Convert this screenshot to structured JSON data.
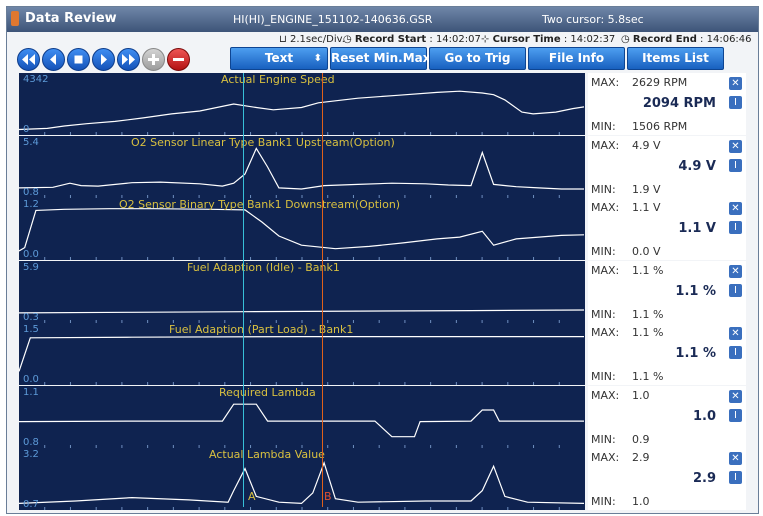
{
  "window": {
    "title": "Data Review",
    "file": "HI(HI)_ENGINE_151102-140636.GSR",
    "cursor_info": "Two cursor: 5.8sec"
  },
  "info": {
    "div": "2.1sec/Div.",
    "record_start_label": "Record Start",
    "record_start": "14:02:07",
    "cursor_time_label": "Cursor Time",
    "cursor_time": "14:02:37",
    "record_end_label": "Record End",
    "record_end": "14:06:46"
  },
  "toolbar": {
    "text_label": "Text",
    "reset_label": "Reset Min.Max",
    "trig_label": "Go to Trig",
    "file_info_label": "File Info",
    "items_label": "Items List"
  },
  "labels": {
    "max": "MAX:",
    "min": "MIN:"
  },
  "cursors": {
    "a": "A",
    "b": "B",
    "a_color": "#37c0d8",
    "b_color": "#e0601a"
  },
  "colors": {
    "panel_bg": "#0f2350",
    "trace": "#ffffff",
    "title_text": "#d8c040",
    "axis_text": "#5d9ad8",
    "button": "#1860bf"
  },
  "channels": [
    {
      "title": "Actual Engine Speed",
      "ymax": "4342",
      "ymin": "0",
      "max": "2629 RPM",
      "current": "2094 RPM",
      "min": "1506 RPM",
      "trace": [
        [
          0,
          0.06
        ],
        [
          0.05,
          0.08
        ],
        [
          0.08,
          0.12
        ],
        [
          0.12,
          0.16
        ],
        [
          0.17,
          0.2
        ],
        [
          0.22,
          0.26
        ],
        [
          0.27,
          0.33
        ],
        [
          0.32,
          0.38
        ],
        [
          0.38,
          0.5
        ],
        [
          0.42,
          0.44
        ],
        [
          0.45,
          0.4
        ],
        [
          0.5,
          0.44
        ],
        [
          0.53,
          0.52
        ],
        [
          0.6,
          0.6
        ],
        [
          0.67,
          0.65
        ],
        [
          0.74,
          0.7
        ],
        [
          0.78,
          0.72
        ],
        [
          0.82,
          0.69
        ],
        [
          0.84,
          0.66
        ],
        [
          0.86,
          0.57
        ],
        [
          0.89,
          0.36
        ],
        [
          0.91,
          0.33
        ],
        [
          0.95,
          0.36
        ],
        [
          0.98,
          0.42
        ],
        [
          1,
          0.45
        ]
      ]
    },
    {
      "title": "O2 Sensor Linear Type Bank1 Upstream(Option)",
      "ymax": "5.4",
      "ymin": "0.8",
      "max": "4.9 V",
      "current": "4.9 V",
      "min": "1.9 V",
      "trace": [
        [
          0,
          0.14
        ],
        [
          0.06,
          0.15
        ],
        [
          0.09,
          0.22
        ],
        [
          0.11,
          0.18
        ],
        [
          0.14,
          0.17
        ],
        [
          0.2,
          0.23
        ],
        [
          0.25,
          0.24
        ],
        [
          0.32,
          0.21
        ],
        [
          0.36,
          0.17
        ],
        [
          0.38,
          0.22
        ],
        [
          0.4,
          0.38
        ],
        [
          0.42,
          0.82
        ],
        [
          0.44,
          0.5
        ],
        [
          0.46,
          0.14
        ],
        [
          0.5,
          0.12
        ],
        [
          0.54,
          0.18
        ],
        [
          0.6,
          0.2
        ],
        [
          0.66,
          0.22
        ],
        [
          0.72,
          0.21
        ],
        [
          0.76,
          0.19
        ],
        [
          0.8,
          0.18
        ],
        [
          0.82,
          0.75
        ],
        [
          0.84,
          0.2
        ],
        [
          0.88,
          0.16
        ],
        [
          0.92,
          0.14
        ],
        [
          0.96,
          0.12
        ],
        [
          1,
          0.12
        ]
      ]
    },
    {
      "title": "O2 Sensor Binary Type Bank1 Downstream(Option)",
      "ymax": "1.2",
      "ymin": "0.0",
      "max": "1.1 V",
      "current": "1.1 V",
      "min": "0.0 V",
      "trace": [
        [
          0,
          0.12
        ],
        [
          0.01,
          0.18
        ],
        [
          0.03,
          0.82
        ],
        [
          0.08,
          0.84
        ],
        [
          0.16,
          0.85
        ],
        [
          0.24,
          0.85
        ],
        [
          0.34,
          0.84
        ],
        [
          0.4,
          0.83
        ],
        [
          0.43,
          0.62
        ],
        [
          0.46,
          0.38
        ],
        [
          0.5,
          0.22
        ],
        [
          0.56,
          0.16
        ],
        [
          0.62,
          0.2
        ],
        [
          0.68,
          0.26
        ],
        [
          0.74,
          0.33
        ],
        [
          0.78,
          0.36
        ],
        [
          0.82,
          0.46
        ],
        [
          0.84,
          0.22
        ],
        [
          0.88,
          0.33
        ],
        [
          0.92,
          0.36
        ],
        [
          0.96,
          0.39
        ],
        [
          1,
          0.4
        ]
      ]
    },
    {
      "title": "Fuel Adaption (Idle) - Bank1",
      "ymax": "5.9",
      "ymin": "0.3",
      "max": "1.1 %",
      "current": "1.1 %",
      "min": "1.1 %",
      "trace": [
        [
          0,
          0.14
        ],
        [
          0.2,
          0.15
        ],
        [
          0.4,
          0.16
        ],
        [
          0.6,
          0.17
        ],
        [
          0.8,
          0.18
        ],
        [
          1,
          0.19
        ]
      ]
    },
    {
      "title": "Fuel Adaption (Part Load) - Bank1",
      "ymax": "1.5",
      "ymin": "0.0",
      "max": "1.1 %",
      "current": "1.1 %",
      "min": "1.1 %",
      "trace": [
        [
          0,
          0.2
        ],
        [
          0.02,
          0.78
        ],
        [
          0.2,
          0.79
        ],
        [
          0.5,
          0.8
        ],
        [
          0.8,
          0.8
        ],
        [
          1,
          0.8
        ]
      ]
    },
    {
      "title": "Required Lambda",
      "ymax": "1.1",
      "ymin": "0.8",
      "max": "1.0",
      "current": "1.0",
      "min": "0.9",
      "trace": [
        [
          0,
          0.42
        ],
        [
          0.2,
          0.43
        ],
        [
          0.36,
          0.43
        ],
        [
          0.38,
          0.72
        ],
        [
          0.42,
          0.72
        ],
        [
          0.44,
          0.43
        ],
        [
          0.63,
          0.43
        ],
        [
          0.66,
          0.16
        ],
        [
          0.7,
          0.16
        ],
        [
          0.71,
          0.42
        ],
        [
          0.8,
          0.43
        ],
        [
          0.82,
          0.62
        ],
        [
          0.84,
          0.62
        ],
        [
          0.85,
          0.43
        ],
        [
          1,
          0.43
        ]
      ]
    },
    {
      "title": "Actual Lambda Value",
      "ymax": "3.2",
      "ymin": "0.7",
      "max": "2.9",
      "current": "2.9",
      "min": "1.0",
      "trace": [
        [
          0,
          0.08
        ],
        [
          0.1,
          0.12
        ],
        [
          0.2,
          0.18
        ],
        [
          0.3,
          0.14
        ],
        [
          0.37,
          0.1
        ],
        [
          0.38,
          0.3
        ],
        [
          0.4,
          0.68
        ],
        [
          0.42,
          0.2
        ],
        [
          0.46,
          0.1
        ],
        [
          0.5,
          0.08
        ],
        [
          0.52,
          0.26
        ],
        [
          0.54,
          0.78
        ],
        [
          0.56,
          0.16
        ],
        [
          0.6,
          0.1
        ],
        [
          0.72,
          0.12
        ],
        [
          0.8,
          0.12
        ],
        [
          0.82,
          0.3
        ],
        [
          0.84,
          0.72
        ],
        [
          0.86,
          0.2
        ],
        [
          0.9,
          0.1
        ],
        [
          1,
          0.08
        ]
      ]
    }
  ]
}
